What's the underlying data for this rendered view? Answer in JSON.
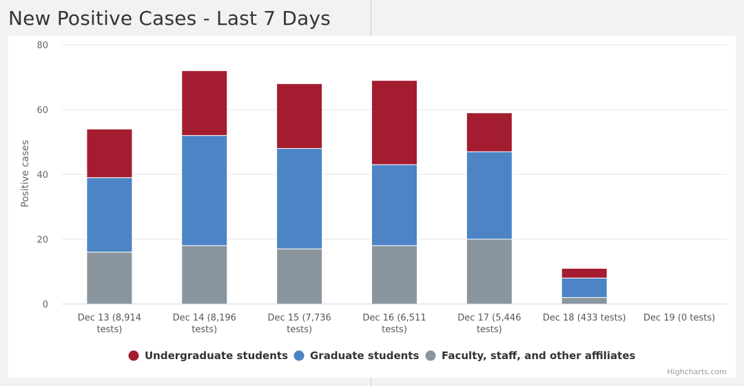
{
  "page": {
    "title": "New Positive Cases - Last 7 Days"
  },
  "chart_data": {
    "type": "bar",
    "stacked": true,
    "title": "New Positive Cases - Last 7 Days",
    "ylabel": "Positive cases",
    "xlabel": "",
    "ylim": [
      0,
      80
    ],
    "yticks": [
      0,
      20,
      40,
      60,
      80
    ],
    "grid": true,
    "legend_position": "bottom",
    "categories": [
      [
        "Dec 13 (8,914",
        "tests)"
      ],
      [
        "Dec 14 (8,196",
        "tests)"
      ],
      [
        "Dec 15 (7,736",
        "tests)"
      ],
      [
        "Dec 16 (6,511",
        "tests)"
      ],
      [
        "Dec 17 (5,446",
        "tests)"
      ],
      [
        "Dec 18 (433 tests)"
      ],
      [
        "Dec 19 (0 tests)"
      ]
    ],
    "series": [
      {
        "name": "Undergraduate students",
        "color": "#a41c30",
        "values": [
          15,
          20,
          20,
          26,
          12,
          3,
          0
        ]
      },
      {
        "name": "Graduate students",
        "color": "#4c84c6",
        "values": [
          23,
          34,
          31,
          25,
          27,
          6,
          0
        ]
      },
      {
        "name": "Faculty, staff, and other affiliates",
        "color": "#8a959e",
        "values": [
          16,
          18,
          17,
          18,
          20,
          2,
          0
        ]
      }
    ],
    "credits": "Highcharts.com"
  }
}
